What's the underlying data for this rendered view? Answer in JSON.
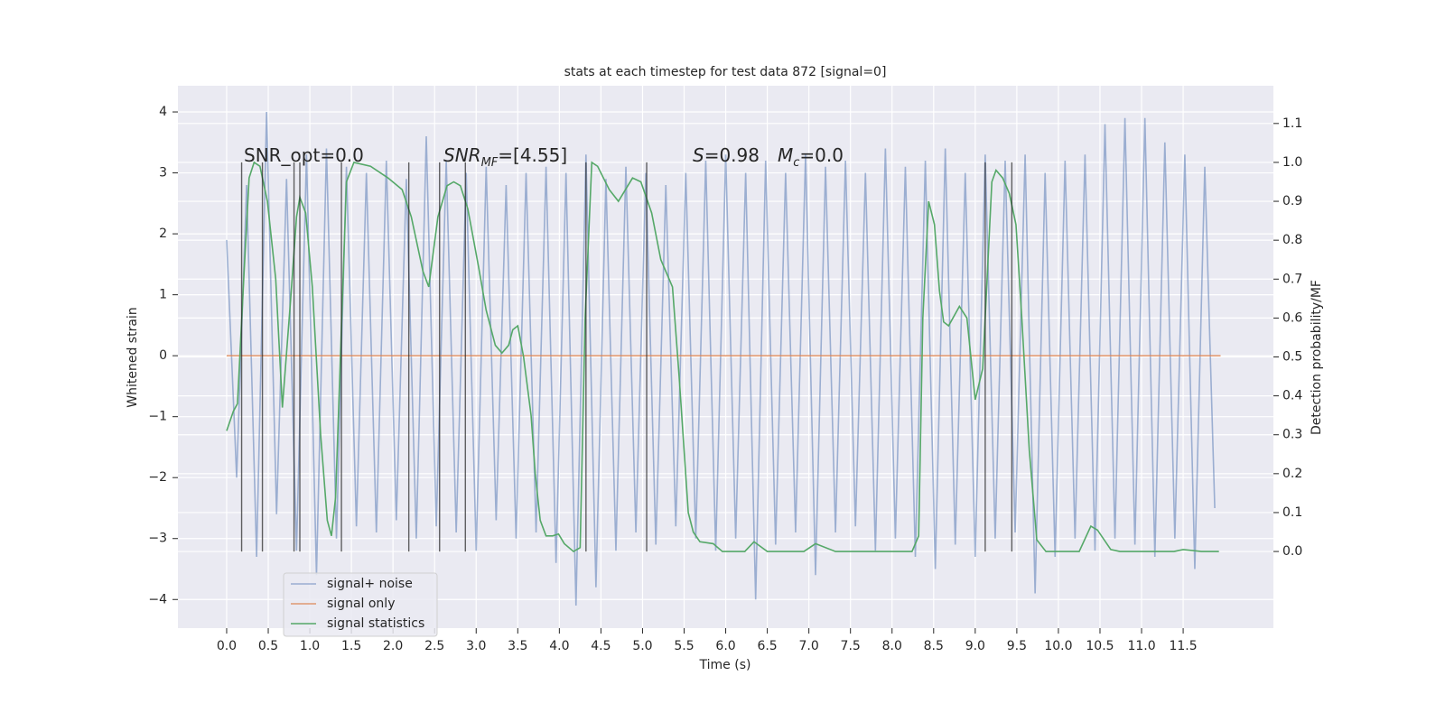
{
  "chart_data": {
    "type": "line",
    "title": "stats at each timestep for test data 872 [signal=0]",
    "xlabel": "Time (s)",
    "ylabel": "Whitened strain",
    "y2label": "Detection probability/MF",
    "xlim": [
      -0.586,
      12.585
    ],
    "ylim": [
      -4.47,
      4.43
    ],
    "y2lim": [
      -0.197,
      1.197
    ],
    "xticks": [
      {
        "value": 0,
        "label": "0.0"
      },
      0.5,
      {
        "value": 1,
        "label": "1.0"
      },
      1.5,
      {
        "value": 2,
        "label": "2.0"
      },
      2.5,
      {
        "value": 3,
        "label": "3.0"
      },
      3.5,
      {
        "value": 4,
        "label": "4.0"
      },
      4.5,
      {
        "value": 5,
        "label": "5.0"
      },
      5.5,
      {
        "value": 6,
        "label": "6.0"
      },
      6.5,
      {
        "value": 7,
        "label": "7.0"
      },
      7.5,
      {
        "value": 8,
        "label": "8.0"
      },
      8.5,
      {
        "value": 9,
        "label": "9.0"
      },
      9.5,
      {
        "value": 10,
        "label": "10.0"
      },
      10.5,
      {
        "value": 11,
        "label": "11.0"
      },
      11.5
    ],
    "yticks": [
      {
        "value": -4,
        "label": "−4"
      },
      {
        "value": -3,
        "label": "−3"
      },
      {
        "value": -2,
        "label": "−2"
      },
      {
        "value": -1,
        "label": "−1"
      },
      0,
      1,
      2,
      3,
      4
    ],
    "y2ticks": [
      {
        "value": 0,
        "label": "0.0"
      },
      0.1,
      0.2,
      0.3,
      0.4,
      0.5,
      0.6,
      0.7,
      0.8,
      0.9,
      {
        "value": 1,
        "label": "1.0"
      },
      1.1
    ],
    "grid": true,
    "legend": "lower left",
    "series": [
      {
        "name": "signal+ noise",
        "color": "#4c72b0",
        "alpha": 0.5,
        "x": [
          0,
          0.12,
          0.24,
          0.36,
          0.48,
          0.6,
          0.72,
          0.84,
          0.96,
          1.08,
          1.2,
          1.32,
          1.44,
          1.56,
          1.68,
          1.8,
          1.92,
          2.04,
          2.16,
          2.28,
          2.4,
          2.52,
          2.64,
          2.76,
          2.88,
          3,
          3.12,
          3.24,
          3.36,
          3.48,
          3.6,
          3.72,
          3.84,
          3.96,
          4.08,
          4.2,
          4.32,
          4.44,
          4.56,
          4.68,
          4.8,
          4.92,
          5.04,
          5.16,
          5.28,
          5.4,
          5.52,
          5.64,
          5.76,
          5.88,
          6,
          6.12,
          6.24,
          6.36,
          6.48,
          6.6,
          6.72,
          6.84,
          6.96,
          7.08,
          7.2,
          7.32,
          7.44,
          7.56,
          7.68,
          7.8,
          7.92,
          8.04,
          8.16,
          8.28,
          8.4,
          8.52,
          8.64,
          8.76,
          8.88,
          9,
          9.12,
          9.24,
          9.36,
          9.48,
          9.6,
          9.72,
          9.84,
          9.96,
          10.08,
          10.2,
          10.32,
          10.44,
          10.56,
          10.68,
          10.8,
          10.92,
          11.04,
          11.16,
          11.28,
          11.4,
          11.52,
          11.64,
          11.76,
          11.88
        ],
        "values": [
          1.9,
          -2.0,
          2.8,
          -3.3,
          4.0,
          -2.6,
          2.9,
          -3.2,
          3.3,
          -3.6,
          3.4,
          -3.0,
          3.1,
          -2.8,
          3.0,
          -2.9,
          3.2,
          -2.7,
          2.9,
          -3.0,
          3.6,
          -2.8,
          3.2,
          -2.9,
          3.0,
          -3.2,
          3.1,
          -2.7,
          2.8,
          -3.0,
          3.0,
          -2.9,
          3.1,
          -3.4,
          3.0,
          -4.1,
          3.3,
          -3.8,
          2.9,
          -3.2,
          3.1,
          -2.9,
          3.0,
          -3.1,
          2.8,
          -2.8,
          3.0,
          -3.0,
          3.2,
          -3.2,
          3.3,
          -3.0,
          3.0,
          -4.0,
          3.2,
          -3.1,
          3.0,
          -2.9,
          3.3,
          -3.6,
          3.1,
          -2.9,
          3.2,
          -2.8,
          3.0,
          -3.2,
          3.4,
          -3.0,
          3.1,
          -3.3,
          3.2,
          -3.5,
          3.4,
          -3.1,
          3.0,
          -3.3,
          3.3,
          -3.0,
          3.2,
          -2.9,
          3.3,
          -3.9,
          3.0,
          -3.3,
          3.2,
          -3.0,
          3.3,
          -3.2,
          3.8,
          -3.0,
          3.9,
          -3.1,
          3.9,
          -3.3,
          3.5,
          -3.0,
          3.3,
          -3.5,
          3.1,
          -2.5
        ]
      },
      {
        "name": "signal only",
        "color": "#dd8452",
        "alpha": 0.8,
        "x": [
          0,
          11.95
        ],
        "values": [
          0,
          0
        ]
      },
      {
        "name": "signal statistics",
        "color": "#55a868",
        "alpha": 1,
        "axis": "y2",
        "x": [
          0,
          0.08,
          0.13,
          0.21,
          0.27,
          0.33,
          0.4,
          0.49,
          0.59,
          0.67,
          0.77,
          0.84,
          0.88,
          0.95,
          1.03,
          1.13,
          1.21,
          1.26,
          1.31,
          1.44,
          1.53,
          1.73,
          1.94,
          2.11,
          2.22,
          2.36,
          2.43,
          2.54,
          2.65,
          2.73,
          2.81,
          2.9,
          3.03,
          3.12,
          3.23,
          3.31,
          3.39,
          3.44,
          3.5,
          3.57,
          3.66,
          3.71,
          3.77,
          3.84,
          3.92,
          3.99,
          4.06,
          4.17,
          4.25,
          4.31,
          4.39,
          4.46,
          4.6,
          4.71,
          4.88,
          4.98,
          5.11,
          5.22,
          5.36,
          5.44,
          5.55,
          5.61,
          5.69,
          5.85,
          5.96,
          6.23,
          6.34,
          6.5,
          6.94,
          7.08,
          7.32,
          8.24,
          8.32,
          8.37,
          8.44,
          8.51,
          8.57,
          8.62,
          8.68,
          8.81,
          8.9,
          9.0,
          9.09,
          9.2,
          9.25,
          9.33,
          9.41,
          9.49,
          9.56,
          9.65,
          9.74,
          9.85,
          10.25,
          10.39,
          10.47,
          10.63,
          10.74,
          11.39,
          11.5,
          11.72,
          11.93
        ],
        "values": [
          0.31,
          0.36,
          0.38,
          0.72,
          0.96,
          1.0,
          0.99,
          0.9,
          0.7,
          0.37,
          0.65,
          0.86,
          0.91,
          0.87,
          0.68,
          0.3,
          0.08,
          0.04,
          0.14,
          0.95,
          1.0,
          0.99,
          0.96,
          0.93,
          0.86,
          0.72,
          0.68,
          0.86,
          0.94,
          0.95,
          0.94,
          0.88,
          0.73,
          0.62,
          0.53,
          0.51,
          0.53,
          0.57,
          0.58,
          0.5,
          0.35,
          0.2,
          0.08,
          0.04,
          0.04,
          0.045,
          0.02,
          0.0,
          0.01,
          0.6,
          1.0,
          0.99,
          0.93,
          0.9,
          0.96,
          0.95,
          0.87,
          0.75,
          0.68,
          0.45,
          0.1,
          0.05,
          0.025,
          0.02,
          0.0,
          0.0,
          0.025,
          0.0,
          0.0,
          0.02,
          0.0,
          0.0,
          0.04,
          0.6,
          0.9,
          0.84,
          0.67,
          0.59,
          0.58,
          0.63,
          0.6,
          0.39,
          0.47,
          0.95,
          0.98,
          0.96,
          0.92,
          0.84,
          0.6,
          0.26,
          0.03,
          0.0,
          0.0,
          0.065,
          0.055,
          0.005,
          0.0,
          0.0,
          0.005,
          0.0,
          0.0
        ]
      }
    ],
    "vlines": [
      0.18,
      0.43,
      0.81,
      0.88,
      1.38,
      2.19,
      2.56,
      2.87,
      4.32,
      5.05,
      9.12,
      9.44
    ],
    "vline_range": [
      0,
      1
    ],
    "annotations": [
      [
        {
          "text": "SNR_opt=0.0"
        }
      ],
      [
        {
          "text": "SNR",
          "italic": true
        },
        {
          "text": "MF",
          "italic": true,
          "sub": true
        },
        {
          "text": "=[4.55]"
        }
      ],
      [
        {
          "text": "S",
          "italic": true
        },
        {
          "text": "=0.98"
        },
        {
          "text": "M",
          "italic": true
        },
        {
          "text": "c",
          "italic": true,
          "sub": true
        },
        {
          "text": "=0.0"
        }
      ]
    ]
  }
}
